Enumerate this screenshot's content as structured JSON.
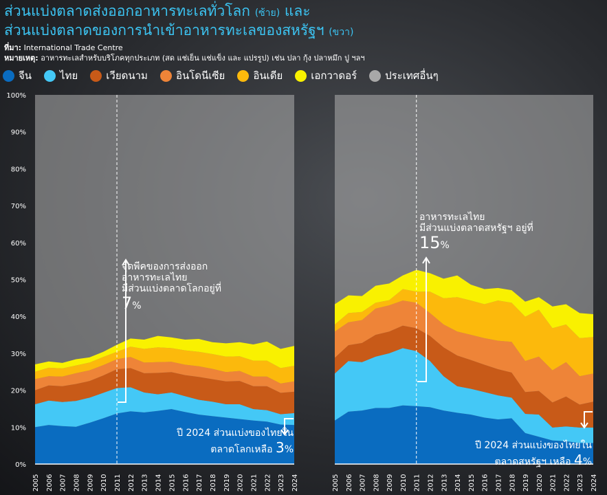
{
  "title": {
    "line1": "ส่วนแบ่งตลาดส่งออกอาหารทะเลทั่วโลก",
    "line1_note": "(ซ้าย)",
    "line1_end": "และ",
    "line2": "ส่วนแบ่งตลาดของการนำเข้าอาหารทะเลของสหรัฐฯ",
    "line2_note": "(ขวา)"
  },
  "source": {
    "label": "ที่มา:",
    "value": "International Trade Centre"
  },
  "note": {
    "label": "หมายเหตุ:",
    "value": "อาหารทะเลสำหรับบริโภคทุกประเภท (สด แช่เย็น แช่แข็ง และ แปรรูป) เช่น ปลา กุ้ง ปลาหมึก ปู ฯลฯ"
  },
  "legend": [
    {
      "label": "จีน",
      "color": "#0a6cc0"
    },
    {
      "label": "ไทย",
      "color": "#44c8f6"
    },
    {
      "label": "เวียดนาม",
      "color": "#c85a18"
    },
    {
      "label": "อินโดนีเซีย",
      "color": "#ee8438"
    },
    {
      "label": "อินเดีย",
      "color": "#fcb90c"
    },
    {
      "label": "เอกวาดอร์",
      "color": "#f9f100"
    },
    {
      "label": "ประเทศอื่นๆ",
      "color": "#a8a8a8"
    }
  ],
  "annotations": {
    "left_peak": {
      "line1": "จุดพีคของการส่งออก",
      "line2": "อาหารทะเลไทย",
      "line3": "มีส่วนแบ่งตลาดโลกอยู่ที่",
      "value": "7",
      "unit": "%"
    },
    "left_2024": {
      "line1": "ปี 2024 ส่วนแบ่งของไทยใน",
      "line2": "ตลาดโลกเหลือ",
      "value": "3",
      "unit": "%"
    },
    "right_peak": {
      "line1": "อาหารทะเลไทย",
      "line2": "มีส่วนแบ่งตลาดสหรัฐฯ อยู่ที่",
      "value": "15",
      "unit": "%"
    },
    "right_2024": {
      "line1": "ปี 2024 ส่วนแบ่งของไทยใน",
      "line2": "ตลาดสหรัฐฯ เหลือ",
      "value": "4",
      "unit": "%"
    }
  },
  "chart_data": [
    {
      "type": "area",
      "stacked": true,
      "ylim": [
        0,
        100
      ],
      "yticks": [
        "0%",
        "10%",
        "20%",
        "30%",
        "40%",
        "50%",
        "60%",
        "70%",
        "80%",
        "90%",
        "100%"
      ],
      "x": [
        2005,
        2006,
        2007,
        2008,
        2009,
        2010,
        2011,
        2012,
        2013,
        2014,
        2015,
        2016,
        2017,
        2018,
        2019,
        2020,
        2021,
        2022,
        2023,
        2024
      ],
      "marker_year": 2011,
      "series": [
        {
          "name": "จีน",
          "values": [
            10,
            10.6,
            10.3,
            10.1,
            11.2,
            12.4,
            13.7,
            14.3,
            14,
            14.4,
            14.9,
            14.1,
            13.4,
            13,
            12.6,
            12.2,
            11.8,
            11.5,
            10.7,
            10.6
          ]
        },
        {
          "name": "ไทย",
          "values": [
            6.2,
            6.6,
            6.5,
            7.0,
            6.8,
            6.9,
            6.9,
            6.5,
            5.4,
            4.5,
            4.5,
            4.3,
            4.0,
            3.9,
            3.6,
            4.0,
            3.1,
            3.1,
            2.8,
            3.2
          ]
        },
        {
          "name": "เวียดนาม",
          "values": [
            3.8,
            4.1,
            4.3,
            4.6,
            4.5,
            4.7,
            5.1,
            5.2,
            5.2,
            5.8,
            5.5,
            5.7,
            6.2,
            6.1,
            6.2,
            6.3,
            6.2,
            6.5,
            5.8,
            5.8
          ]
        },
        {
          "name": "อินโดนีเซีย",
          "values": [
            3.0,
            2.5,
            2.6,
            2.9,
            2.9,
            2.8,
            2.7,
            3.0,
            2.9,
            2.9,
            2.8,
            2.8,
            2.9,
            2.8,
            2.5,
            2.7,
            2.6,
            2.6,
            2.5,
            2.8
          ]
        },
        {
          "name": "อินเดีย",
          "values": [
            2.0,
            2.3,
            2.2,
            2.1,
            2.1,
            2.2,
            2.0,
            2.8,
            3.7,
            4.0,
            3.7,
            3.9,
            3.9,
            4.0,
            4.2,
            4.0,
            4.3,
            4.3,
            4.2,
            4.2
          ]
        },
        {
          "name": "เอกวาดอร์",
          "values": [
            2.0,
            1.7,
            1.5,
            1.7,
            1.4,
            1.4,
            1.9,
            2.2,
            2.5,
            3.1,
            2.9,
            2.9,
            3.5,
            3.2,
            3.6,
            3.8,
            4.4,
            5.2,
            5.2,
            5.4
          ]
        }
      ]
    },
    {
      "type": "area",
      "stacked": true,
      "ylim": [
        0,
        100
      ],
      "x": [
        2005,
        2006,
        2007,
        2008,
        2009,
        2010,
        2011,
        2012,
        2013,
        2014,
        2015,
        2016,
        2017,
        2018,
        2019,
        2020,
        2021,
        2022,
        2023,
        2024
      ],
      "marker_year": 2011,
      "series": [
        {
          "name": "จีน",
          "values": [
            11.8,
            14.2,
            14.5,
            15.2,
            15.2,
            15.9,
            15.7,
            15.4,
            14.5,
            13.9,
            13.4,
            12.6,
            12.1,
            12.4,
            8.4,
            7.4,
            6.4,
            6.2,
            5.7,
            5.7
          ]
        },
        {
          "name": "ไทย",
          "values": [
            12.7,
            13.7,
            13.1,
            13.9,
            14.8,
            15.5,
            14.9,
            12.5,
            9.3,
            7.2,
            7.0,
            6.9,
            6.5,
            5.6,
            5.2,
            6.0,
            3.5,
            4.0,
            4.2,
            4.2
          ]
        },
        {
          "name": "เวียดนาม",
          "values": [
            4.3,
            4.3,
            5.2,
            5.9,
            5.9,
            6.1,
            6.2,
            6.8,
            7.8,
            8.3,
            7.8,
            7.4,
            7.1,
            6.8,
            5.9,
            6.4,
            6.8,
            8.1,
            6.2,
            7.0
          ]
        },
        {
          "name": "อินโดนีเซีย",
          "values": [
            7.1,
            6.2,
            6.2,
            7.1,
            7.1,
            6.8,
            6.9,
            6.2,
            6.2,
            6.5,
            6.8,
            7.2,
            7.7,
            8.3,
            8.4,
            9.3,
            8.7,
            9.3,
            7.7,
            7.6
          ]
        },
        {
          "name": "อินเดีย",
          "values": [
            1.9,
            2.5,
            2.2,
            1.6,
            1.4,
            3.1,
            3.0,
            5.8,
            7.1,
            9.3,
            9.3,
            9.2,
            10.9,
            10.6,
            12.0,
            12.7,
            11.4,
            10.2,
            10.3,
            9.9
          ]
        },
        {
          "name": "เอกวาดอร์",
          "values": [
            5.5,
            4.8,
            4.3,
            4.6,
            4.5,
            3.7,
            5.9,
            5.0,
            5.3,
            5.9,
            4.3,
            4.1,
            3.4,
            3.4,
            4.1,
            3.4,
            5.9,
            5.5,
            6.8,
            6.2
          ]
        }
      ]
    }
  ]
}
